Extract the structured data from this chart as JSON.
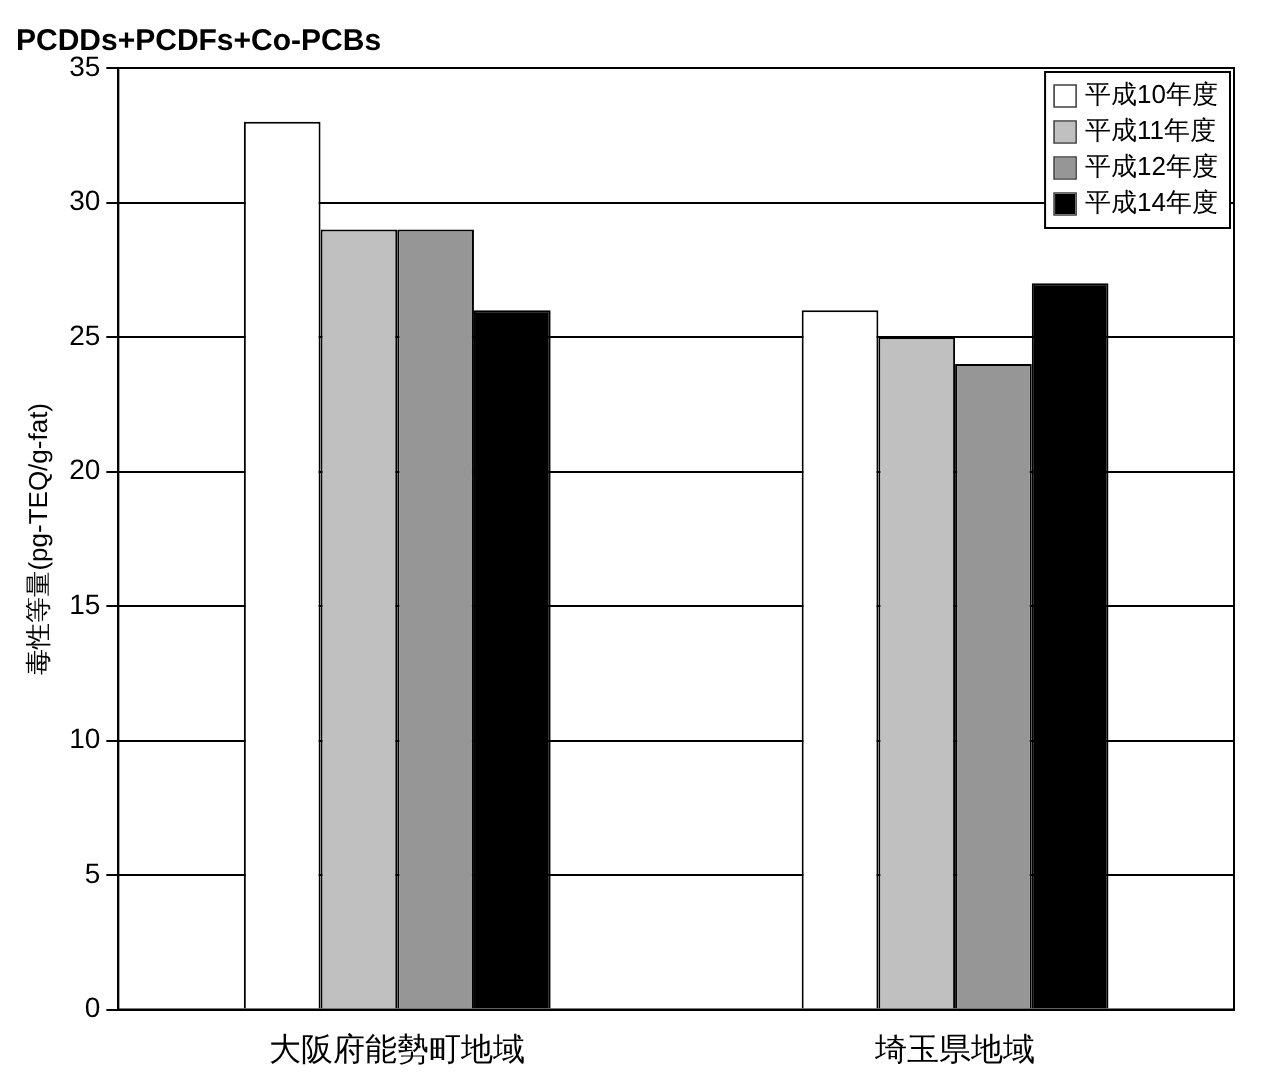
{
  "chart_data": {
    "type": "bar",
    "title": "PCDDs+PCDFs+Co-PCBs",
    "ylabel": "毒性等量(pg-TEQ/g-fat)",
    "categories": [
      "大阪府能勢町地域",
      "埼玉県地域"
    ],
    "series": [
      {
        "name": "平成10年度",
        "color": "#ffffff",
        "values": [
          33,
          26
        ]
      },
      {
        "name": "平成11年度",
        "color": "#c0c0c0",
        "values": [
          29,
          25
        ]
      },
      {
        "name": "平成12年度",
        "color": "#969696",
        "values": [
          29,
          24
        ]
      },
      {
        "name": "平成14年度",
        "color": "#000000",
        "values": [
          26,
          27
        ]
      }
    ],
    "ylim": [
      0,
      35
    ],
    "yticks": [
      0,
      5,
      10,
      15,
      20,
      25,
      30,
      35
    ],
    "grid": "y",
    "legend": "top right"
  }
}
